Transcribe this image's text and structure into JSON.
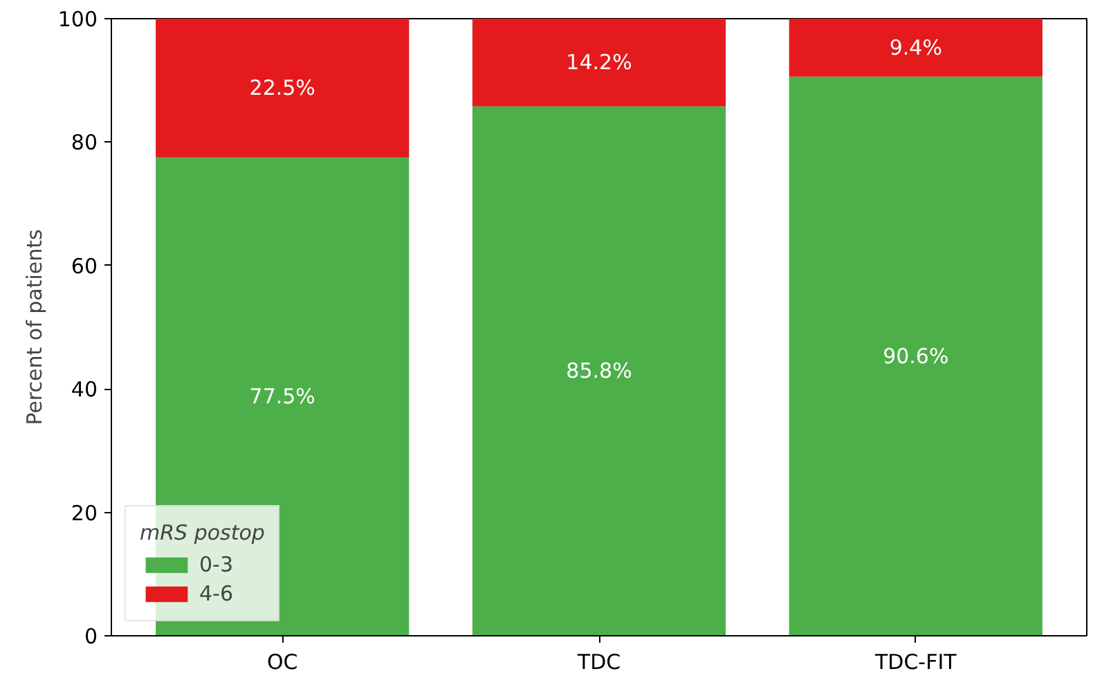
{
  "chart_data": {
    "type": "bar",
    "stacked": true,
    "ylabel": "Percent of patients",
    "legend_title": "mRS postop",
    "legend": "bottom left",
    "categories": [
      "OC",
      "TDC",
      "TDC-FIT"
    ],
    "ylim": [
      0,
      100
    ],
    "yticks": [
      0,
      20,
      40,
      60,
      80,
      100
    ],
    "grid": false,
    "series": [
      {
        "name": "0-3",
        "color": "#4daf4a",
        "values": [
          77.5,
          85.8,
          90.6
        ],
        "value_labels": [
          "77.5%",
          "85.8%",
          "90.6%"
        ]
      },
      {
        "name": "4-6",
        "color": "#e41a1c",
        "values": [
          22.5,
          14.2,
          9.4
        ],
        "value_labels": [
          "22.5%",
          "14.2%",
          "9.4%"
        ]
      }
    ]
  }
}
